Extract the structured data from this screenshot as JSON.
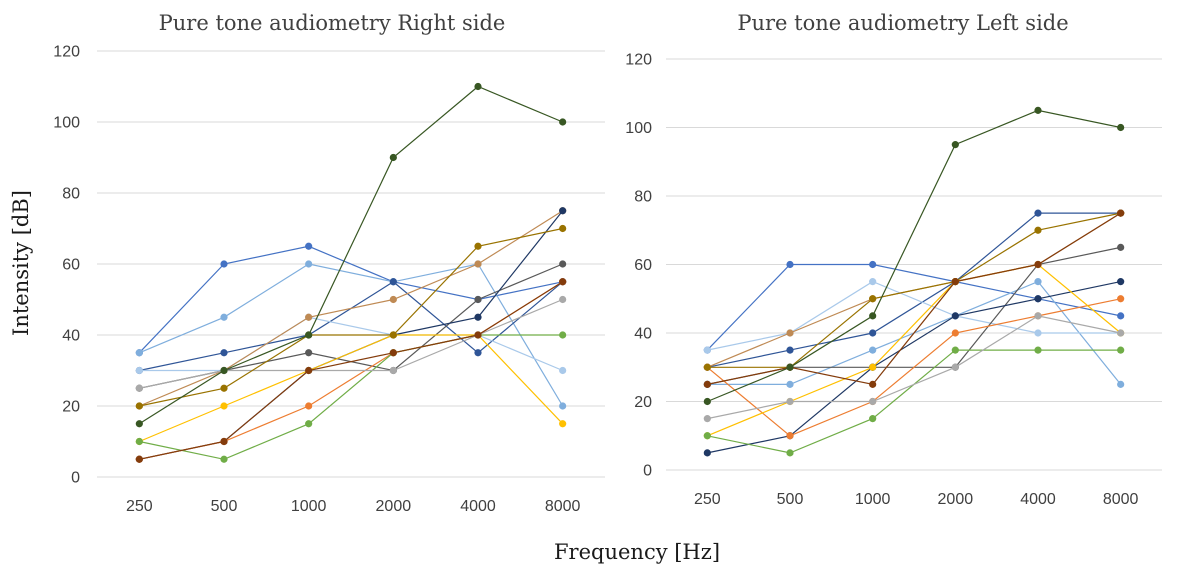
{
  "ylabel": "Intensity [dB]",
  "xlabel": "Frequency [Hz]",
  "chart_data": [
    {
      "type": "line",
      "title": "Pure tone audiometry Right side",
      "categories": [
        "250",
        "500",
        "1000",
        "2000",
        "4000",
        "8000"
      ],
      "ylim": [
        0,
        120
      ],
      "yticks": [
        "0",
        "20",
        "40",
        "60",
        "80",
        "100",
        "120"
      ],
      "grid": true,
      "series": [
        {
          "color": "#4472c4",
          "values": [
            35,
            60,
            65,
            55,
            50,
            55
          ]
        },
        {
          "color": "#7faedd",
          "values": [
            35,
            45,
            60,
            55,
            60,
            20
          ]
        },
        {
          "color": "#2f5597",
          "values": [
            30,
            35,
            40,
            55,
            35,
            55
          ]
        },
        {
          "color": "#a9c9ea",
          "values": [
            30,
            30,
            45,
            40,
            40,
            30
          ]
        },
        {
          "color": "#595959",
          "values": [
            25,
            30,
            35,
            30,
            50,
            60
          ]
        },
        {
          "color": "#bf8a54",
          "values": [
            20,
            30,
            45,
            50,
            60,
            75
          ]
        },
        {
          "color": "#1f3864",
          "values": [
            5,
            10,
            30,
            40,
            45,
            75
          ]
        },
        {
          "color": "#ed7d31",
          "values": [
            5,
            10,
            20,
            35,
            40,
            55
          ]
        },
        {
          "color": "#ffc000",
          "values": [
            10,
            20,
            30,
            40,
            40,
            15
          ]
        },
        {
          "color": "#70ad47",
          "values": [
            10,
            5,
            15,
            35,
            40,
            40
          ]
        },
        {
          "color": "#a9a9a9",
          "values": [
            25,
            30,
            30,
            30,
            40,
            50
          ]
        },
        {
          "color": "#997300",
          "values": [
            20,
            25,
            40,
            40,
            65,
            70
          ]
        },
        {
          "color": "#843c0c",
          "values": [
            5,
            10,
            30,
            35,
            40,
            55
          ]
        },
        {
          "color": "#385723",
          "values": [
            15,
            30,
            40,
            90,
            110,
            100
          ]
        }
      ]
    },
    {
      "type": "line",
      "title": "Pure tone audiometry Left side",
      "categories": [
        "250",
        "500",
        "1000",
        "2000",
        "4000",
        "8000"
      ],
      "ylim": [
        0,
        120
      ],
      "yticks": [
        "0",
        "20",
        "40",
        "60",
        "80",
        "100",
        "120"
      ],
      "grid": true,
      "series": [
        {
          "color": "#4472c4",
          "values": [
            35,
            60,
            60,
            55,
            50,
            45
          ]
        },
        {
          "color": "#7faedd",
          "values": [
            25,
            25,
            35,
            45,
            55,
            25
          ]
        },
        {
          "color": "#2f5597",
          "values": [
            30,
            35,
            40,
            55,
            75,
            75
          ]
        },
        {
          "color": "#a9c9ea",
          "values": [
            35,
            40,
            55,
            45,
            40,
            40
          ]
        },
        {
          "color": "#595959",
          "values": [
            25,
            30,
            30,
            30,
            60,
            65
          ]
        },
        {
          "color": "#bf8a54",
          "values": [
            30,
            40,
            50,
            55,
            60,
            75
          ]
        },
        {
          "color": "#1f3864",
          "values": [
            5,
            10,
            30,
            45,
            50,
            55
          ]
        },
        {
          "color": "#ed7d31",
          "values": [
            30,
            10,
            20,
            40,
            45,
            50
          ]
        },
        {
          "color": "#ffc000",
          "values": [
            10,
            20,
            30,
            55,
            60,
            40
          ]
        },
        {
          "color": "#70ad47",
          "values": [
            10,
            5,
            15,
            35,
            35,
            35
          ]
        },
        {
          "color": "#a9a9a9",
          "values": [
            15,
            20,
            20,
            30,
            45,
            40
          ]
        },
        {
          "color": "#997300",
          "values": [
            30,
            30,
            50,
            55,
            70,
            75
          ]
        },
        {
          "color": "#843c0c",
          "values": [
            25,
            30,
            25,
            55,
            60,
            75
          ]
        },
        {
          "color": "#385723",
          "values": [
            20,
            30,
            45,
            95,
            105,
            100
          ]
        }
      ]
    }
  ]
}
